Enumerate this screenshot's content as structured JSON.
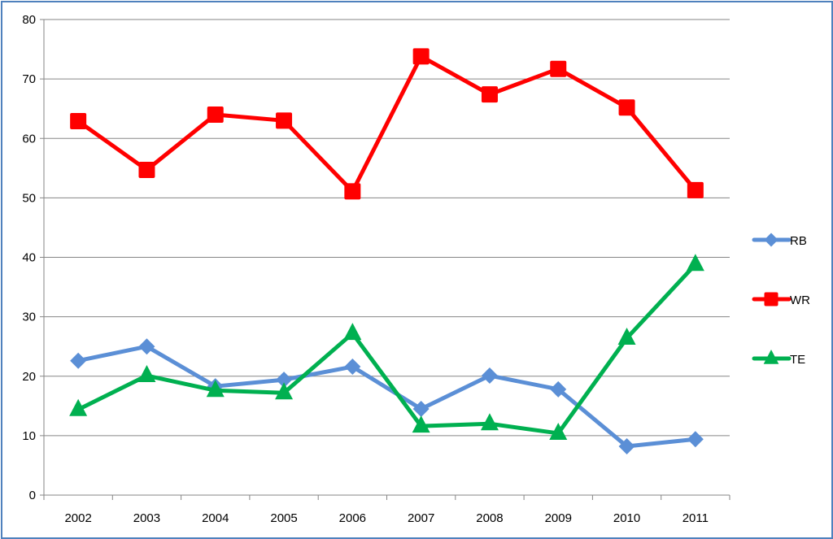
{
  "chart_data": {
    "type": "line",
    "title": "",
    "xlabel": "",
    "ylabel": "",
    "categories": [
      "2002",
      "2003",
      "2004",
      "2005",
      "2006",
      "2007",
      "2008",
      "2009",
      "2010",
      "2011"
    ],
    "ylim": [
      0,
      80
    ],
    "yticks": [
      0,
      10,
      20,
      30,
      40,
      50,
      60,
      70,
      80
    ],
    "grid": true,
    "legend_position": "right",
    "series": [
      {
        "name": "RB",
        "color": "#5b8fd6",
        "marker": "diamond",
        "values": [
          22.6,
          25.0,
          18.3,
          19.4,
          21.6,
          14.5,
          20.1,
          17.8,
          8.2,
          9.4
        ]
      },
      {
        "name": "WR",
        "color": "#ff0000",
        "marker": "square",
        "values": [
          62.9,
          54.7,
          64.0,
          63.0,
          51.1,
          73.8,
          67.4,
          71.7,
          65.2,
          51.3
        ]
      },
      {
        "name": "TE",
        "color": "#00b050",
        "marker": "triangle",
        "values": [
          14.4,
          20.1,
          17.6,
          17.2,
          27.2,
          11.6,
          12.0,
          10.4,
          26.4,
          38.8
        ]
      }
    ]
  }
}
